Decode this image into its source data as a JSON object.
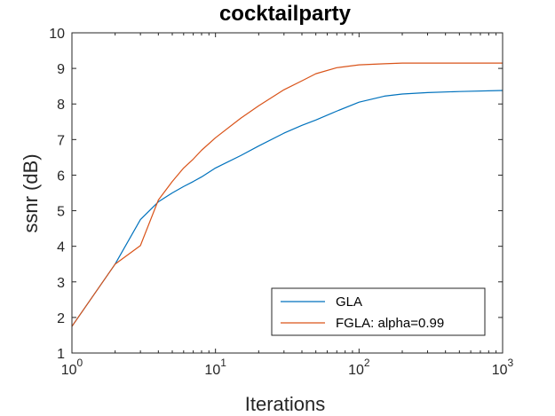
{
  "chart_data": {
    "type": "line",
    "title": "cocktailparty",
    "xlabel": "Iterations",
    "ylabel": "ssnr (dB)",
    "xscale": "log",
    "xlim": [
      1,
      1000
    ],
    "ylim": [
      1,
      10
    ],
    "xticks": [
      {
        "base": "10",
        "exp": "0",
        "value": 1
      },
      {
        "base": "10",
        "exp": "1",
        "value": 10
      },
      {
        "base": "10",
        "exp": "2",
        "value": 100
      },
      {
        "base": "10",
        "exp": "3",
        "value": 1000
      }
    ],
    "yticks": [
      "1",
      "2",
      "3",
      "4",
      "5",
      "6",
      "7",
      "8",
      "9",
      "10"
    ],
    "grid": false,
    "legend_position": "lower-right",
    "series": [
      {
        "name": "GLA",
        "color": "#0072BD",
        "x": [
          1,
          2,
          3,
          4,
          5,
          6,
          7,
          8,
          10,
          15,
          20,
          30,
          40,
          50,
          70,
          100,
          150,
          200,
          300,
          500,
          1000
        ],
        "y": [
          1.75,
          3.5,
          4.75,
          5.25,
          5.5,
          5.68,
          5.82,
          5.95,
          6.2,
          6.55,
          6.82,
          7.18,
          7.4,
          7.55,
          7.8,
          8.05,
          8.22,
          8.28,
          8.32,
          8.35,
          8.38
        ]
      },
      {
        "name": "FGLA: alpha=0.99",
        "color": "#D95319",
        "x": [
          1,
          2,
          3,
          4,
          5,
          6,
          7,
          8,
          10,
          15,
          20,
          30,
          40,
          50,
          70,
          100,
          150,
          200,
          300,
          500,
          1000
        ],
        "y": [
          1.75,
          3.5,
          4.02,
          5.3,
          5.82,
          6.2,
          6.45,
          6.7,
          7.05,
          7.6,
          7.95,
          8.4,
          8.65,
          8.85,
          9.02,
          9.1,
          9.13,
          9.15,
          9.15,
          9.15,
          9.15
        ]
      }
    ]
  }
}
